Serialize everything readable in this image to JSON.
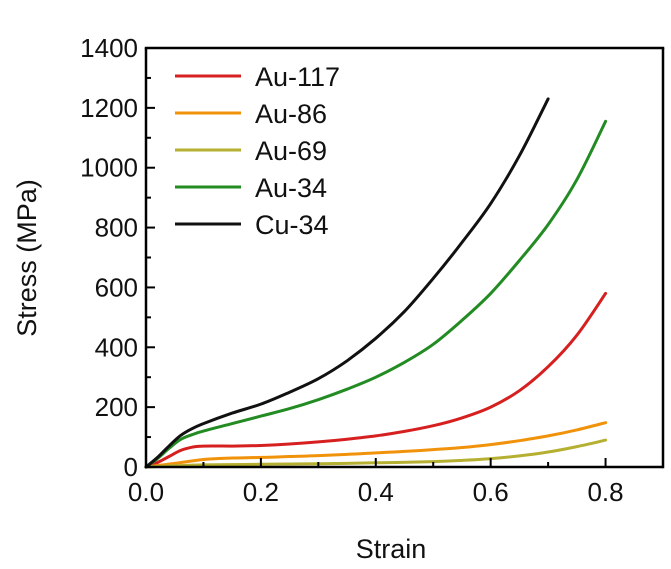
{
  "chart_data": {
    "type": "line",
    "title": "",
    "xlabel": "Strain",
    "ylabel": "Stress (MPa)",
    "xlim": [
      0,
      0.9
    ],
    "ylim": [
      0,
      1400
    ],
    "xticks": [
      "0.0",
      "0.2",
      "0.4",
      "0.6",
      "0.8"
    ],
    "yticks": [
      "0",
      "200",
      "400",
      "600",
      "800",
      "1000",
      "1200",
      "1400"
    ],
    "grid": false,
    "legend_position": "top-left",
    "series": [
      {
        "name": "Au-117",
        "color": "#d62020",
        "x": [
          0,
          0.02,
          0.04,
          0.06,
          0.08,
          0.1,
          0.15,
          0.2,
          0.25,
          0.3,
          0.35,
          0.4,
          0.45,
          0.5,
          0.55,
          0.6,
          0.65,
          0.7,
          0.75,
          0.8
        ],
        "y": [
          0,
          15,
          35,
          55,
          66,
          70,
          70,
          72,
          77,
          84,
          93,
          104,
          119,
          138,
          164,
          200,
          255,
          335,
          440,
          580
        ]
      },
      {
        "name": "Au-86",
        "color": "#f0920a",
        "x": [
          0,
          0.05,
          0.1,
          0.15,
          0.2,
          0.25,
          0.3,
          0.35,
          0.4,
          0.45,
          0.5,
          0.55,
          0.6,
          0.65,
          0.7,
          0.75,
          0.8
        ],
        "y": [
          0,
          12,
          25,
          30,
          32,
          35,
          38,
          42,
          47,
          52,
          58,
          65,
          75,
          88,
          104,
          124,
          148
        ]
      },
      {
        "name": "Au-69",
        "color": "#b5b032",
        "x": [
          0,
          0.05,
          0.1,
          0.2,
          0.3,
          0.4,
          0.5,
          0.55,
          0.6,
          0.65,
          0.7,
          0.75,
          0.8
        ],
        "y": [
          0,
          4,
          7,
          9,
          11,
          14,
          18,
          22,
          28,
          37,
          50,
          68,
          90
        ]
      },
      {
        "name": "Au-34",
        "color": "#228b22",
        "x": [
          0,
          0.02,
          0.04,
          0.06,
          0.08,
          0.1,
          0.15,
          0.2,
          0.25,
          0.3,
          0.35,
          0.4,
          0.45,
          0.5,
          0.55,
          0.6,
          0.65,
          0.7,
          0.75,
          0.8
        ],
        "y": [
          0,
          28,
          62,
          92,
          108,
          120,
          145,
          170,
          195,
          225,
          260,
          300,
          350,
          410,
          490,
          580,
          690,
          810,
          960,
          1155
        ]
      },
      {
        "name": "Cu-34",
        "color": "#111111",
        "x": [
          0,
          0.02,
          0.04,
          0.06,
          0.08,
          0.1,
          0.15,
          0.2,
          0.25,
          0.3,
          0.35,
          0.4,
          0.45,
          0.5,
          0.55,
          0.6,
          0.65,
          0.7
        ],
        "y": [
          0,
          32,
          70,
          105,
          128,
          145,
          180,
          210,
          250,
          295,
          355,
          430,
          520,
          630,
          750,
          880,
          1040,
          1230
        ]
      }
    ]
  }
}
